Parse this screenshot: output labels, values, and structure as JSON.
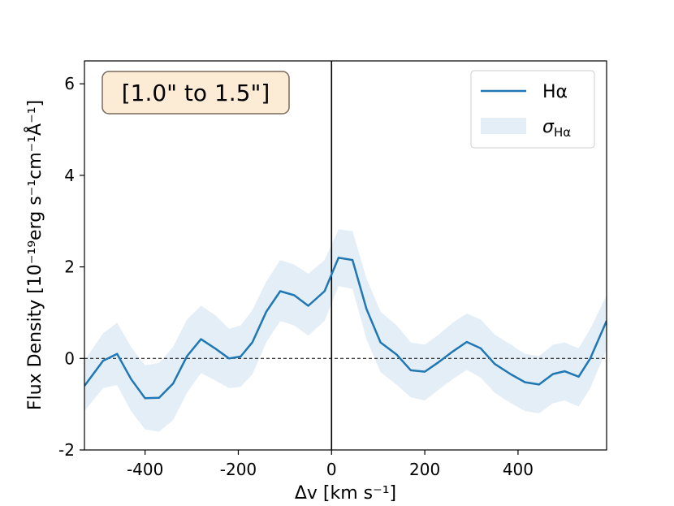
{
  "chart_data": {
    "type": "line",
    "xlabel": "Δv [km s⁻¹]",
    "ylabel": "Flux Density [10⁻¹⁹erg s⁻¹cm⁻¹Å⁻¹]",
    "xlim": [
      -530,
      590
    ],
    "ylim": [
      -2,
      6.5
    ],
    "xticks": [
      -400,
      -200,
      0,
      200,
      400
    ],
    "xtick_labels": [
      "-400",
      "-200",
      "0",
      "200",
      "400"
    ],
    "yticks": [
      -2,
      0,
      2,
      4,
      6
    ],
    "ytick_labels": [
      "-2",
      "0",
      "2",
      "4",
      "6"
    ],
    "annotation": "[1.0\" to 1.5\"]",
    "annotation_bg": "#fcebd5",
    "grid": false,
    "legend": {
      "placement": "top-right",
      "line_label": "Hα",
      "band_label_main": "σ",
      "band_label_sub": "Hα"
    },
    "series": [
      {
        "name": "Hα",
        "color": "#1f77b4",
        "x": [
          -530,
          -490,
          -460,
          -430,
          -400,
          -370,
          -340,
          -310,
          -280,
          -250,
          -220,
          -195,
          -170,
          -140,
          -110,
          -80,
          -50,
          -15,
          15,
          45,
          75,
          105,
          140,
          170,
          200,
          230,
          260,
          290,
          320,
          350,
          385,
          415,
          445,
          475,
          500,
          530,
          555,
          590
        ],
        "y": [
          -0.6,
          -0.05,
          0.1,
          -0.45,
          -0.87,
          -0.86,
          -0.55,
          0.05,
          0.42,
          0.22,
          0.0,
          0.04,
          0.35,
          1.02,
          1.47,
          1.38,
          1.15,
          1.47,
          2.2,
          2.15,
          1.08,
          0.35,
          0.08,
          -0.26,
          -0.29,
          -0.08,
          0.15,
          0.36,
          0.22,
          -0.12,
          -0.35,
          -0.52,
          -0.57,
          -0.34,
          -0.28,
          -0.4,
          0.0,
          0.82
        ]
      }
    ],
    "band": {
      "name": "σHα",
      "color": "#1f77b4",
      "opacity": 0.12,
      "x": [
        -530,
        -490,
        -460,
        -430,
        -400,
        -370,
        -340,
        -310,
        -280,
        -250,
        -220,
        -195,
        -170,
        -140,
        -110,
        -80,
        -50,
        -15,
        15,
        45,
        75,
        105,
        140,
        170,
        200,
        230,
        260,
        290,
        320,
        350,
        385,
        415,
        445,
        475,
        500,
        530,
        555,
        590
      ],
      "upper": [
        -0.05,
        0.55,
        0.78,
        0.25,
        -0.15,
        -0.1,
        0.25,
        0.85,
        1.15,
        0.95,
        0.65,
        0.72,
        1.05,
        1.68,
        2.15,
        2.05,
        1.85,
        2.15,
        2.82,
        2.78,
        1.75,
        1.02,
        0.72,
        0.35,
        0.3,
        0.52,
        0.78,
        0.98,
        0.85,
        0.52,
        0.3,
        0.1,
        0.05,
        0.3,
        0.35,
        0.22,
        0.65,
        1.38
      ],
      "lower": [
        -1.15,
        -0.65,
        -0.58,
        -1.15,
        -1.55,
        -1.6,
        -1.35,
        -0.75,
        -0.32,
        -0.48,
        -0.65,
        -0.62,
        -0.35,
        0.35,
        0.82,
        0.72,
        0.5,
        0.82,
        1.58,
        1.52,
        0.42,
        -0.3,
        -0.58,
        -0.85,
        -0.92,
        -0.68,
        -0.45,
        -0.25,
        -0.42,
        -0.75,
        -0.98,
        -1.15,
        -1.2,
        -0.98,
        -0.92,
        -1.05,
        -0.65,
        0.2
      ]
    },
    "vline": {
      "x": 0,
      "color": "#000000"
    },
    "hline": {
      "y": 0,
      "color": "#000000",
      "style": "dashed"
    }
  }
}
